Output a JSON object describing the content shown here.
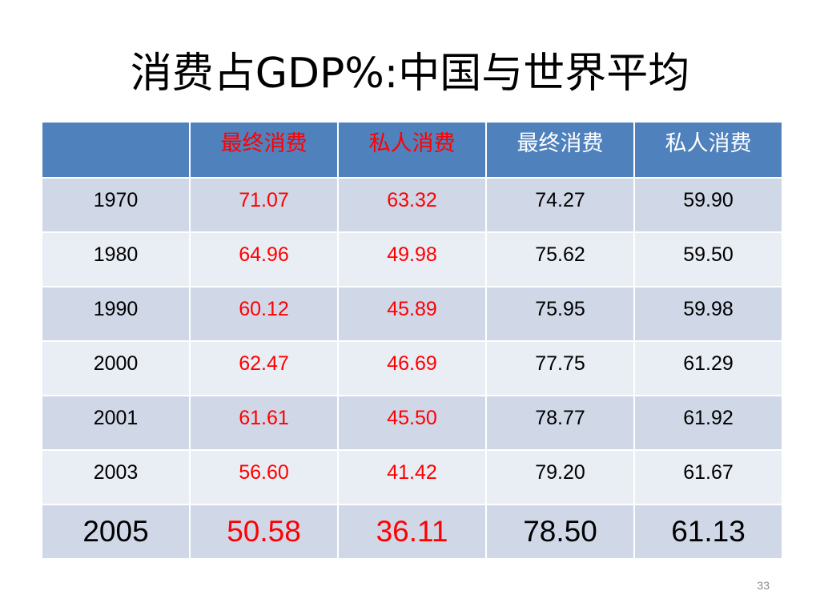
{
  "slide": {
    "title": "消费占GDP%:中国与世界平均",
    "page_number": "33"
  },
  "table": {
    "headers": [
      "",
      "最终消费",
      "私人消费",
      "最终消费",
      "私人消费"
    ],
    "rows": [
      [
        "1970",
        "71.07",
        "63.32",
        "74.27",
        "59.90"
      ],
      [
        "1980",
        "64.96",
        "49.98",
        "75.62",
        "59.50"
      ],
      [
        "1990",
        "60.12",
        "45.89",
        "75.95",
        "59.98"
      ],
      [
        "2000",
        "62.47",
        "46.69",
        "77.75",
        "61.29"
      ],
      [
        "2001",
        "61.61",
        "45.50",
        "78.77",
        "61.92"
      ],
      [
        "2003",
        "56.60",
        "41.42",
        "79.20",
        "61.67"
      ],
      [
        "2005",
        "50.58",
        "36.11",
        "78.50",
        "61.13"
      ]
    ]
  },
  "colors": {
    "header_bg": "#4f81bd",
    "row_band_dark": "#d0d8e8",
    "row_band_light": "#e9edf4",
    "china_text": "#ff0000",
    "world_text": "#000000"
  }
}
